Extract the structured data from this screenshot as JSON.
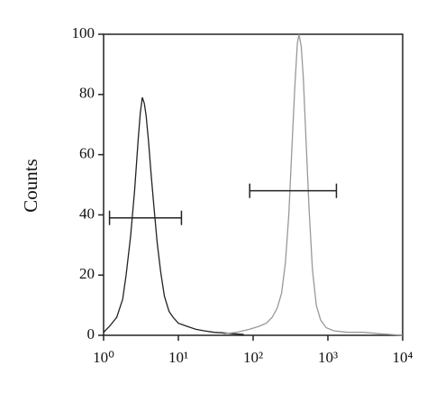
{
  "chart_data": {
    "type": "line",
    "y_label": "Counts",
    "xscale": "log",
    "xlim": [
      1,
      10000
    ],
    "ylim": [
      0,
      100
    ],
    "xticks": [
      {
        "value": 1,
        "label": "10⁰"
      },
      {
        "value": 10,
        "label": "10¹"
      },
      {
        "value": 100,
        "label": "10²"
      },
      {
        "value": 1000,
        "label": "10³"
      },
      {
        "value": 10000,
        "label": "10⁴"
      }
    ],
    "yticks": [
      0,
      20,
      40,
      60,
      80,
      100
    ],
    "series": [
      {
        "color": "#222222",
        "x": [
          1,
          1.2,
          1.5,
          1.8,
          2,
          2.3,
          2.6,
          2.9,
          3.1,
          3.3,
          3.5,
          3.7,
          4,
          4.3,
          4.7,
          5.2,
          5.8,
          6.5,
          7.5,
          8.5,
          10,
          13,
          17,
          22,
          30,
          40,
          55,
          75
        ],
        "values": [
          1,
          3,
          6,
          12,
          20,
          33,
          48,
          65,
          74,
          79,
          77,
          73,
          64,
          54,
          43,
          31,
          21,
          13,
          8,
          6,
          4,
          3,
          2,
          1.5,
          1,
          0.8,
          0.5,
          0.3
        ]
      },
      {
        "color": "#999999",
        "x": [
          40,
          60,
          90,
          120,
          150,
          180,
          210,
          240,
          270,
          300,
          330,
          360,
          390,
          410,
          440,
          470,
          510,
          560,
          620,
          700,
          800,
          950,
          1200,
          1800,
          3000,
          5000,
          10000
        ],
        "values": [
          0.5,
          1,
          2,
          3,
          4,
          6,
          9,
          14,
          24,
          40,
          62,
          82,
          97,
          100,
          96,
          85,
          65,
          42,
          22,
          10,
          5,
          2.5,
          1.5,
          1,
          1,
          0.5,
          0
        ]
      }
    ],
    "gates": [
      {
        "x": [
          1.2,
          11
        ],
        "y": 39
      },
      {
        "x": [
          90,
          1300
        ],
        "y": 48
      }
    ]
  }
}
